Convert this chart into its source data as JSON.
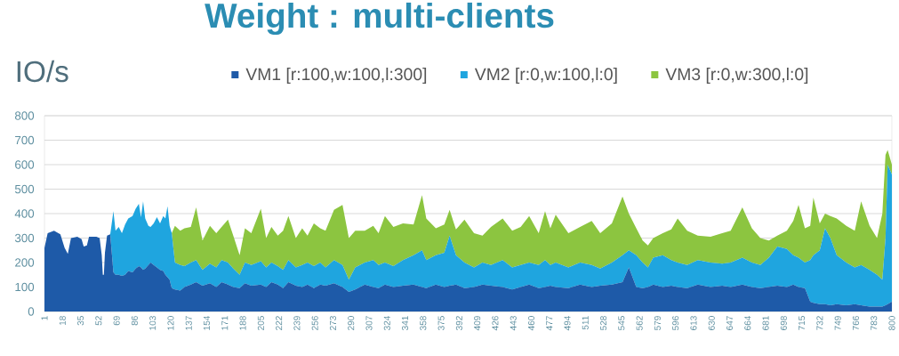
{
  "chart_data": {
    "type": "area",
    "stacked": true,
    "title": "Weight : multi-clients",
    "ylabel": "IO/s",
    "legend": "top",
    "grid": "y",
    "xlim": [
      1,
      800
    ],
    "xticks": [
      1,
      18,
      35,
      52,
      69,
      86,
      103,
      120,
      137,
      154,
      171,
      188,
      205,
      222,
      239,
      256,
      273,
      290,
      307,
      324,
      341,
      358,
      375,
      392,
      409,
      426,
      443,
      460,
      477,
      494,
      511,
      528,
      545,
      562,
      579,
      596,
      613,
      630,
      647,
      664,
      681,
      698,
      715,
      732,
      749,
      766,
      783,
      800
    ],
    "ylim": [
      0,
      800
    ],
    "yticks": [
      0,
      100,
      200,
      300,
      400,
      500,
      600,
      700,
      800
    ],
    "x": [
      1,
      4,
      10,
      16,
      20,
      23,
      26,
      32,
      36,
      38,
      41,
      43,
      50,
      53,
      55,
      56,
      57,
      58,
      60,
      63,
      66,
      68,
      71,
      74,
      77,
      80,
      84,
      87,
      90,
      92,
      94,
      96,
      99,
      101,
      104,
      107,
      110,
      113,
      115,
      117,
      119,
      121,
      124,
      129,
      133,
      139,
      144,
      150,
      157,
      163,
      168,
      174,
      179,
      185,
      190,
      196,
      205,
      210,
      215,
      221,
      226,
      231,
      238,
      244,
      249,
      255,
      261,
      266,
      274,
      282,
      288,
      294,
      303,
      311,
      316,
      322,
      330,
      339,
      349,
      357,
      361,
      370,
      378,
      383,
      389,
      397,
      406,
      414,
      422,
      433,
      442,
      450,
      458,
      467,
      473,
      478,
      483,
      495,
      506,
      517,
      525,
      536,
      546,
      552,
      559,
      565,
      570,
      575,
      584,
      592,
      598,
      607,
      617,
      629,
      640,
      648,
      659,
      668,
      676,
      684,
      692,
      701,
      707,
      712,
      718,
      723,
      726,
      732,
      737,
      742,
      748,
      757,
      765,
      771,
      779,
      786,
      791,
      794,
      796,
      800
    ],
    "series": [
      {
        "name": "VM1 [r:100,w:100,l:300]",
        "color": "#1e5aa8",
        "values": [
          260,
          320,
          330,
          315,
          260,
          235,
          300,
          305,
          295,
          265,
          270,
          305,
          305,
          300,
          230,
          150,
          150,
          240,
          310,
          315,
          160,
          150,
          150,
          145,
          150,
          165,
          160,
          175,
          185,
          180,
          170,
          175,
          190,
          200,
          190,
          180,
          170,
          165,
          150,
          140,
          130,
          95,
          90,
          85,
          100,
          110,
          120,
          105,
          115,
          100,
          120,
          110,
          100,
          95,
          115,
          105,
          110,
          100,
          120,
          110,
          95,
          120,
          105,
          100,
          110,
          95,
          110,
          105,
          115,
          100,
          80,
          90,
          110,
          100,
          95,
          110,
          100,
          105,
          110,
          100,
          95,
          110,
          100,
          105,
          110,
          95,
          100,
          110,
          105,
          100,
          90,
          100,
          110,
          95,
          100,
          105,
          100,
          95,
          110,
          100,
          105,
          110,
          120,
          180,
          100,
          95,
          100,
          110,
          100,
          105,
          100,
          95,
          110,
          100,
          105,
          100,
          110,
          100,
          95,
          100,
          105,
          100,
          110,
          100,
          95,
          40,
          35,
          30,
          30,
          25,
          30,
          25,
          30,
          25,
          20,
          20,
          20,
          25,
          30,
          40
        ]
      },
      {
        "name": "VM2 [r:0,w:100,l:0]",
        "color": "#1fa5df",
        "values": [
          0,
          0,
          0,
          0,
          0,
          0,
          0,
          0,
          0,
          0,
          0,
          0,
          0,
          0,
          0,
          0,
          0,
          0,
          0,
          0,
          250,
          180,
          195,
          175,
          205,
          215,
          230,
          245,
          255,
          205,
          280,
          205,
          160,
          145,
          170,
          205,
          190,
          225,
          230,
          290,
          220,
          225,
          110,
          105,
          85,
          90,
          90,
          65,
          80,
          80,
          90,
          90,
          75,
          55,
          85,
          85,
          95,
          80,
          80,
          75,
          75,
          90,
          75,
          90,
          90,
          90,
          90,
          75,
          95,
          90,
          50,
          90,
          90,
          110,
          95,
          90,
          85,
          105,
          120,
          150,
          115,
          120,
          140,
          205,
          120,
          105,
          80,
          90,
          85,
          110,
          90,
          90,
          90,
          95,
          110,
          85,
          100,
          85,
          90,
          90,
          70,
          90,
          110,
          70,
          130,
          105,
          80,
          110,
          130,
          105,
          100,
          95,
          100,
          100,
          90,
          100,
          110,
          100,
          95,
          120,
          160,
          155,
          120,
          120,
          105,
          170,
          195,
          220,
          310,
          275,
          200,
          175,
          150,
          165,
          150,
          130,
          110,
          275,
          570,
          520
        ]
      },
      {
        "name": "VM3 [r:0,w:300,l:0]",
        "color": "#8cc540",
        "values": [
          0,
          0,
          0,
          0,
          0,
          0,
          0,
          0,
          0,
          0,
          0,
          0,
          0,
          0,
          0,
          0,
          0,
          0,
          0,
          0,
          0,
          0,
          0,
          0,
          0,
          0,
          0,
          0,
          0,
          0,
          0,
          0,
          0,
          0,
          0,
          0,
          0,
          0,
          0,
          0,
          0,
          0,
          150,
          140,
          155,
          145,
          215,
          120,
          155,
          140,
          135,
          175,
          135,
          80,
          140,
          130,
          215,
          120,
          145,
          125,
          160,
          180,
          120,
          150,
          110,
          175,
          140,
          150,
          205,
          245,
          170,
          150,
          130,
          140,
          130,
          190,
          160,
          150,
          125,
          225,
          170,
          110,
          115,
          105,
          105,
          175,
          140,
          110,
          155,
          170,
          150,
          155,
          190,
          130,
          200,
          150,
          195,
          140,
          145,
          180,
          145,
          160,
          240,
          150,
          110,
          90,
          90,
          80,
          90,
          125,
          180,
          140,
          100,
          105,
          125,
          130,
          205,
          140,
          110,
          70,
          45,
          75,
          140,
          215,
          140,
          140,
          235,
          110,
          60,
          90,
          150,
          150,
          150,
          260,
          180,
          150,
          270,
          340,
          60,
          40
        ]
      }
    ]
  }
}
